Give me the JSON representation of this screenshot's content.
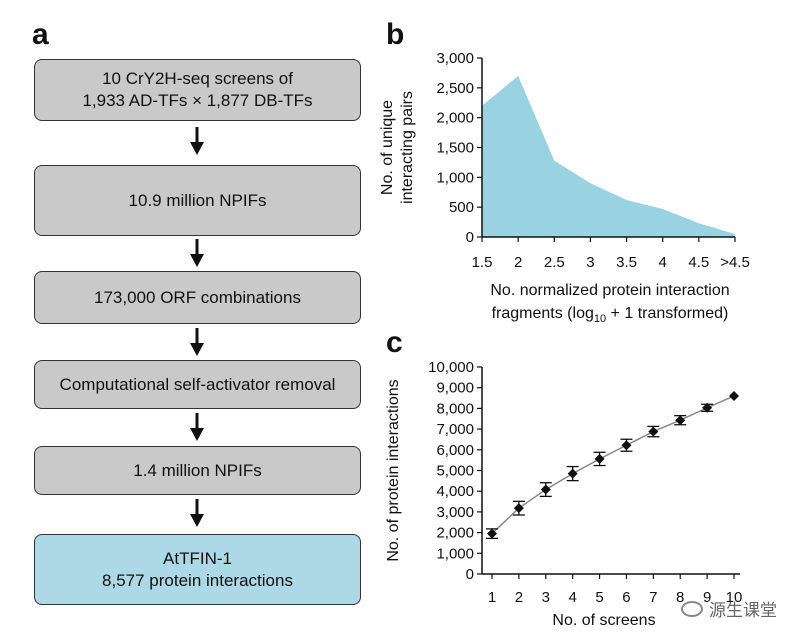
{
  "panel_a": {
    "letter": "a",
    "boxes": [
      {
        "lines": [
          "10 CrY2H-seq screens of",
          "1,933 AD-TFs × 1,877 DB-TFs"
        ]
      },
      {
        "lines": [
          "10.9 million NPIFs"
        ]
      },
      {
        "lines": [
          "173,000 ORF combinations"
        ]
      },
      {
        "lines": [
          "Computational self-activator removal"
        ]
      },
      {
        "lines": [
          "1.4 million NPIFs"
        ]
      },
      {
        "lines": [
          "AtTFIN-1",
          "8,577 protein interactions"
        ]
      }
    ]
  },
  "chart_data": [
    {
      "panel": "b",
      "type": "area",
      "categories": [
        "1.5",
        "2",
        "2.5",
        "3",
        "3.5",
        "4",
        "4.5",
        ">4.5"
      ],
      "values": [
        2200,
        2700,
        1280,
        900,
        620,
        470,
        230,
        50
      ],
      "ylim": [
        0,
        3000
      ],
      "yticks": [
        "0",
        "500",
        "1,000",
        "1,500",
        "2,000",
        "2,500",
        "3,000"
      ],
      "ylabel": [
        "No. of unique",
        "interacting pairs"
      ],
      "xlabel": [
        "No. normalized protein interaction",
        "fragments (log",
        "10",
        " + 1 transformed)"
      ],
      "color": "#99d2e0"
    },
    {
      "panel": "c",
      "type": "line",
      "x": [
        1,
        2,
        3,
        4,
        5,
        6,
        7,
        8,
        9,
        10
      ],
      "y": [
        1950,
        3180,
        4080,
        4850,
        5560,
        6220,
        6880,
        7430,
        8030,
        8600
      ],
      "err": [
        230,
        330,
        330,
        340,
        320,
        290,
        250,
        220,
        170,
        0
      ],
      "xticks": [
        "1",
        "2",
        "3",
        "4",
        "5",
        "6",
        "7",
        "8",
        "9",
        "10"
      ],
      "ylim": [
        0,
        10000
      ],
      "yticks": [
        "0",
        "1,000",
        "2,000",
        "3,000",
        "4,000",
        "5,000",
        "6,000",
        "7,000",
        "8,000",
        "9,000",
        "10,000"
      ],
      "ylabel": "No. of protein interactions",
      "xlabel": "No. of screens"
    }
  ],
  "watermark": "源生课堂"
}
